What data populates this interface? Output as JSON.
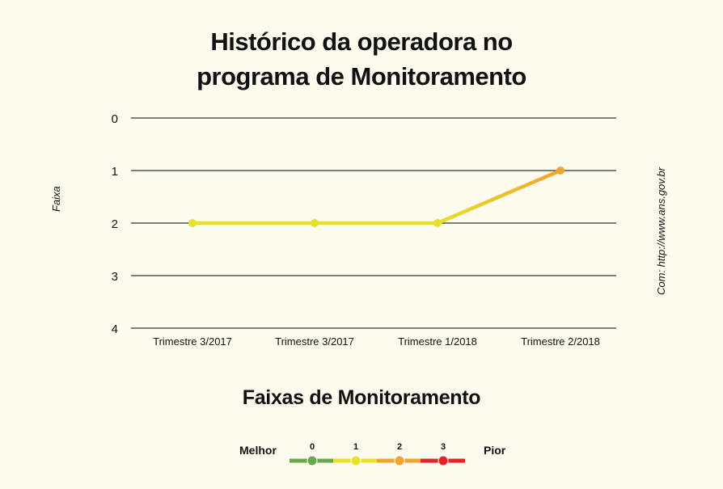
{
  "chart_data": {
    "type": "line",
    "title_line1": "Histórico da operadora no",
    "title_line2": "programa de Monitoramento",
    "ylabel": "Faixa",
    "source": "Com: http://www.ans.gov.br",
    "categories": [
      "Trimestre 3/2017",
      "Trimestre 3/2017",
      "Trimestre 1/2018",
      "Trimestre 2/2018"
    ],
    "values": [
      2,
      2,
      2,
      1
    ],
    "ylim": [
      0,
      4
    ],
    "yticks": [
      "0",
      "1",
      "2",
      "3",
      "4"
    ],
    "y_inverted": true,
    "grid": true,
    "colors": {
      "band_0": "#6aa84f",
      "band_1": "#e5e12c",
      "band_2": "#f0a530",
      "band_3": "#e0262b"
    }
  },
  "legend": {
    "title": "Faixas de Monitoramento",
    "best_label": "Melhor",
    "worst_label": "Pior",
    "bands": [
      "0",
      "1",
      "2",
      "3"
    ]
  }
}
